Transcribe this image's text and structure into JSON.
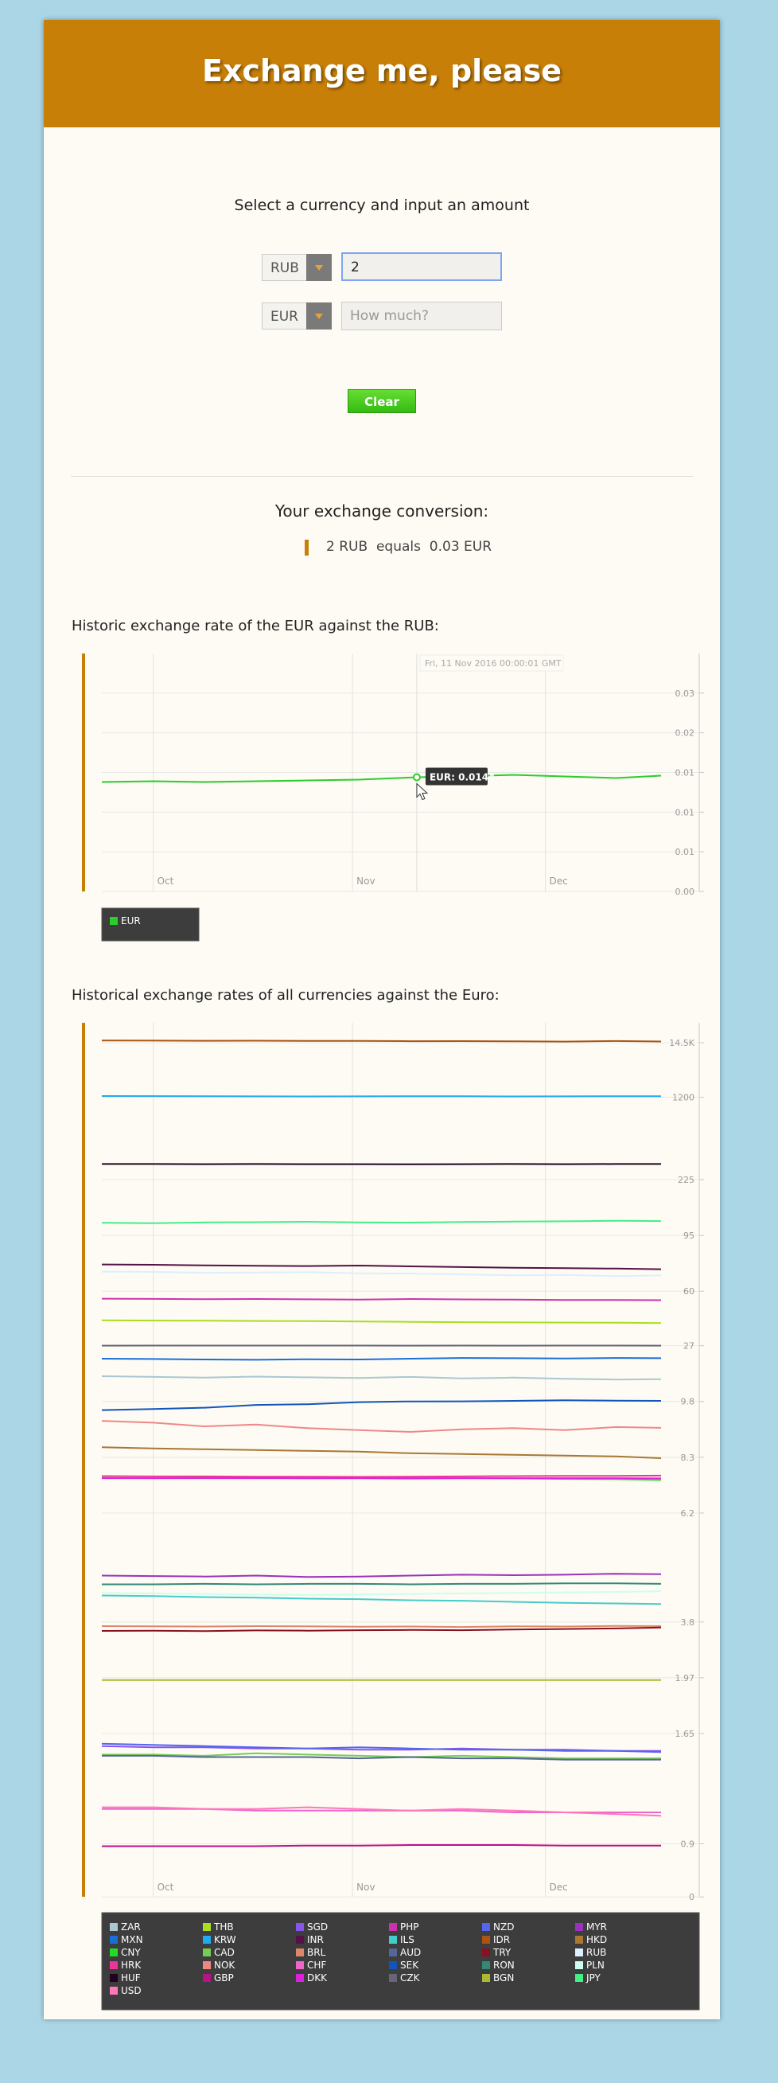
{
  "header": {
    "title": "Exchange me, please"
  },
  "form": {
    "prompt": "Select a currency and input an amount",
    "from_currency": "RUB",
    "amount": "2",
    "to_currency": "EUR",
    "placeholder": "How much?",
    "clear": "Clear"
  },
  "conversion": {
    "heading": "Your exchange conversion:",
    "from": "2 RUB",
    "equals": "equals",
    "to": "0.03 EUR"
  },
  "chart_data": [
    {
      "type": "line",
      "title": "Historic exchange rate of the EUR against the RUB:",
      "x": [
        0,
        8,
        16,
        24,
        32,
        40,
        49,
        56,
        64,
        72,
        80,
        87
      ],
      "xlim": [
        0,
        87
      ],
      "xticks": [
        {
          "value": 8,
          "label": "Oct"
        },
        {
          "value": 39,
          "label": "Nov"
        },
        {
          "value": 69,
          "label": "Dec"
        }
      ],
      "ylim": [
        0,
        0.03
      ],
      "yticks": [
        {
          "value": 0,
          "label": "0.00"
        },
        {
          "value": 0.005,
          "label": "0.01"
        },
        0.01,
        {
          "value": 0.015,
          "label": "0.01"
        },
        0.02,
        {
          "value": 0.025,
          "label": "0.03"
        }
      ],
      "grid": true,
      "tooltip": {
        "date": "Fri, 11 Nov 2016 00:00:01 GMT",
        "label": "EUR: 0.0144",
        "index": 6
      },
      "series": [
        {
          "name": "EUR",
          "color": "#2ccc2c",
          "values": [
            0.0138,
            0.0139,
            0.0138,
            0.0139,
            0.014,
            0.0141,
            0.0144,
            0.0145,
            0.0147,
            0.0145,
            0.0143,
            0.0146
          ]
        }
      ]
    },
    {
      "type": "line",
      "title": "Historical exchange rates of all currencies against the Euro:",
      "x": [
        0,
        8,
        16,
        24,
        32,
        40,
        48,
        56,
        64,
        72,
        80,
        87
      ],
      "xlim": [
        0,
        87
      ],
      "xticks": [
        {
          "value": 8,
          "label": "Oct"
        },
        {
          "value": 39,
          "label": "Nov"
        },
        {
          "value": 69,
          "label": "Dec"
        }
      ],
      "ylim": [
        0,
        36000
      ],
      "yticks": [
        {
          "value": 14500,
          "label": "14.5K"
        },
        1200,
        225,
        95,
        60,
        27,
        9.8,
        8.3,
        6.2,
        3.8,
        1.97,
        1.65,
        0.9,
        0
      ],
      "grid": true,
      "series": [
        {
          "name": "ZAR",
          "color": "#a9c8d2",
          "values": [
            15.5,
            15.3,
            15.1,
            15.4,
            15.2,
            15.0,
            15.3,
            14.9,
            15.1,
            14.8,
            14.6,
            14.7
          ]
        },
        {
          "name": "THB",
          "color": "#aadd22",
          "values": [
            39.2,
            39.0,
            38.9,
            38.8,
            38.7,
            38.5,
            38.3,
            38.1,
            38.0,
            37.9,
            37.8,
            37.6
          ]
        },
        {
          "name": "SGD",
          "color": "#8855ee",
          "values": [
            1.54,
            1.53,
            1.53,
            1.52,
            1.52,
            1.51,
            1.51,
            1.52,
            1.51,
            1.51,
            1.5,
            1.5
          ]
        },
        {
          "name": "PHP",
          "color": "#cc33aa",
          "values": [
            53.8,
            53.6,
            53.4,
            53.5,
            53.3,
            53.1,
            53.5,
            53.2,
            53.0,
            52.8,
            52.7,
            52.6
          ]
        },
        {
          "name": "NZD",
          "color": "#5566ee",
          "values": [
            1.56,
            1.55,
            1.54,
            1.53,
            1.52,
            1.53,
            1.52,
            1.51,
            1.51,
            1.5,
            1.5,
            1.49
          ]
        },
        {
          "name": "MYR",
          "color": "#9933bb",
          "values": [
            4.68,
            4.67,
            4.66,
            4.68,
            4.65,
            4.66,
            4.68,
            4.7,
            4.69,
            4.7,
            4.72,
            4.71
          ]
        },
        {
          "name": "MXN",
          "color": "#1a6ed8",
          "values": [
            21.3,
            21.2,
            21.0,
            20.9,
            21.1,
            21.0,
            21.3,
            21.6,
            21.5,
            21.4,
            21.6,
            21.5
          ]
        },
        {
          "name": "KRW",
          "color": "#22aaee",
          "values": [
            1270,
            1265,
            1255,
            1250,
            1248,
            1252,
            1260,
            1255,
            1245,
            1250,
            1262,
            1258
          ]
        },
        {
          "name": "INR",
          "color": "#551144",
          "values": [
            74.8,
            74.6,
            74.2,
            74.0,
            73.8,
            74.1,
            73.6,
            73.2,
            72.8,
            72.5,
            72.3,
            71.9
          ]
        },
        {
          "name": "ILS",
          "color": "#44cccc",
          "values": [
            4.28,
            4.27,
            4.25,
            4.24,
            4.22,
            4.21,
            4.19,
            4.18,
            4.16,
            4.14,
            4.13,
            4.12
          ]
        },
        {
          "name": "IDR",
          "color": "#aa5511",
          "values": [
            16100,
            16000,
            15900,
            15950,
            15800,
            15850,
            15600,
            15650,
            15500,
            15300,
            15700,
            15400
          ]
        },
        {
          "name": "HKD",
          "color": "#aa7733",
          "values": [
            8.55,
            8.52,
            8.5,
            8.48,
            8.46,
            8.44,
            8.4,
            8.38,
            8.36,
            8.34,
            8.32,
            8.26
          ]
        },
        {
          "name": "CNY",
          "color": "#22dd22",
          "values": [
            7.45,
            7.44,
            7.46,
            7.45,
            7.43,
            7.44,
            7.42,
            7.44,
            7.43,
            7.41,
            7.4,
            7.37
          ]
        },
        {
          "name": "CAD",
          "color": "#77cc55",
          "values": [
            1.47,
            1.47,
            1.46,
            1.48,
            1.47,
            1.46,
            1.45,
            1.46,
            1.45,
            1.44,
            1.44,
            1.44
          ]
        },
        {
          "name": "BRL",
          "color": "#dd8866",
          "values": [
            3.62,
            3.61,
            3.6,
            3.62,
            3.61,
            3.59,
            3.6,
            3.58,
            3.61,
            3.6,
            3.63,
            3.62
          ]
        },
        {
          "name": "AUD",
          "color": "#556699",
          "values": [
            1.46,
            1.46,
            1.45,
            1.45,
            1.45,
            1.44,
            1.45,
            1.44,
            1.44,
            1.43,
            1.43,
            1.43
          ]
        },
        {
          "name": "TRY",
          "color": "#881122",
          "values": [
            3.42,
            3.43,
            3.41,
            3.44,
            3.43,
            3.45,
            3.46,
            3.45,
            3.48,
            3.5,
            3.52,
            3.56
          ]
        },
        {
          "name": "RUB",
          "color": "#ddeeff",
          "values": [
            70.5,
            70.3,
            69.8,
            70.0,
            70.2,
            69.5,
            69.4,
            68.9,
            68.4,
            68.6,
            67.9,
            68.3
          ]
        },
        {
          "name": "HRK",
          "color": "#ee3399",
          "values": [
            7.52,
            7.51,
            7.51,
            7.5,
            7.5,
            7.49,
            7.5,
            7.51,
            7.52,
            7.53,
            7.53,
            7.54
          ]
        },
        {
          "name": "NOK",
          "color": "#ee8888",
          "values": [
            9.25,
            9.2,
            9.1,
            9.15,
            9.05,
            9.0,
            8.95,
            9.02,
            9.05,
            9.0,
            9.08,
            9.06
          ]
        },
        {
          "name": "CHF",
          "color": "#ee66cc",
          "values": [
            1.09,
            1.09,
            1.09,
            1.08,
            1.08,
            1.08,
            1.08,
            1.08,
            1.07,
            1.07,
            1.07,
            1.07
          ]
        },
        {
          "name": "SEK",
          "color": "#1155bb",
          "values": [
            9.55,
            9.58,
            9.62,
            9.7,
            9.72,
            9.78,
            9.8,
            9.82,
            9.9,
            10.0,
            9.95,
            9.9
          ]
        },
        {
          "name": "RON",
          "color": "#338877",
          "values": [
            4.5,
            4.5,
            4.51,
            4.5,
            4.51,
            4.51,
            4.5,
            4.51,
            4.51,
            4.52,
            4.52,
            4.51
          ]
        },
        {
          "name": "PLN",
          "color": "#ccffee",
          "values": [
            4.33,
            4.32,
            4.31,
            4.3,
            4.29,
            4.3,
            4.31,
            4.32,
            4.33,
            4.34,
            4.35,
            4.36
          ]
        },
        {
          "name": "HUF",
          "color": "#220022",
          "values": [
            309,
            309,
            308,
            309,
            308,
            308,
            307,
            308,
            309,
            308,
            309,
            309
          ]
        },
        {
          "name": "GBP",
          "color": "#bb1188",
          "values": [
            0.86,
            0.86,
            0.86,
            0.86,
            0.87,
            0.87,
            0.88,
            0.88,
            0.88,
            0.87,
            0.87,
            0.87
          ]
        },
        {
          "name": "DKK",
          "color": "#dd22dd",
          "values": [
            7.44,
            7.44,
            7.44,
            7.44,
            7.44,
            7.44,
            7.44,
            7.44,
            7.44,
            7.44,
            7.44,
            7.43
          ]
        },
        {
          "name": "CZK",
          "color": "#666677",
          "values": [
            27.02,
            27.03,
            27.04,
            27.03,
            27.03,
            27.03,
            27.02,
            27.03,
            27.02,
            27.03,
            27.03,
            27.02
          ]
        },
        {
          "name": "BGN",
          "color": "#aabb33",
          "values": [
            1.9558,
            1.9558,
            1.9558,
            1.9558,
            1.9558,
            1.9558,
            1.9558,
            1.9558,
            1.9558,
            1.9558,
            1.9558,
            1.9558
          ]
        },
        {
          "name": "JPY",
          "color": "#44ee88",
          "values": [
            115.4,
            114.8,
            116.1,
            116.5,
            117.3,
            116.2,
            115.9,
            116.8,
            117.5,
            118.2,
            119.0,
            118.6
          ]
        },
        {
          "name": "USD",
          "color": "#ff77bb",
          "values": [
            1.1,
            1.1,
            1.09,
            1.09,
            1.1,
            1.09,
            1.08,
            1.09,
            1.08,
            1.07,
            1.06,
            1.05
          ]
        }
      ]
    }
  ]
}
